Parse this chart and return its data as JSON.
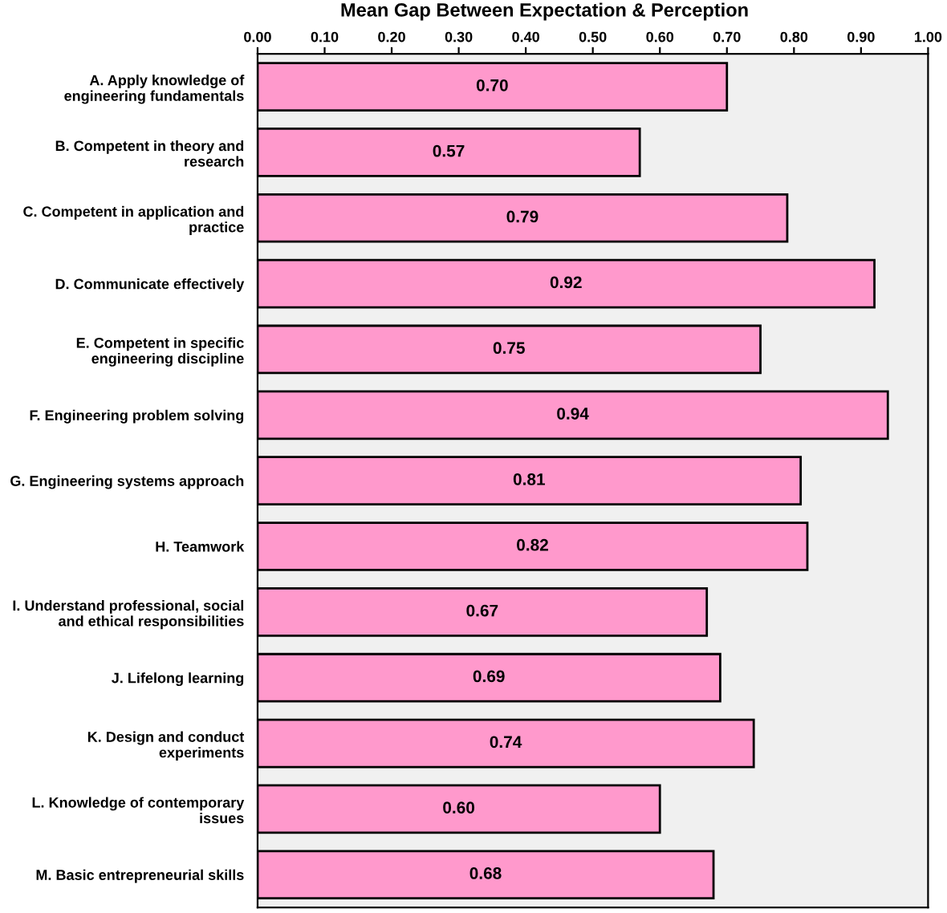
{
  "chart_data": {
    "type": "bar",
    "orientation": "horizontal",
    "title": "Mean Gap Between Expectation & Perception",
    "categories": [
      "A. Apply knowledge of\nengineering fundamentals",
      "B. Competent in theory and\nresearch",
      "C. Competent in application and\npractice",
      "D. Communicate effectively",
      "E. Competent in specific\nengineering discipline",
      "F. Engineering problem solving",
      "G. Engineering systems approach",
      "H. Teamwork",
      "I. Understand professional, social\nand ethical responsibilities",
      "J. Lifelong learning",
      "K. Design and conduct\nexperiments",
      "L. Knowledge of contemporary\nissues",
      "M. Basic entrepreneurial skills"
    ],
    "values": [
      0.7,
      0.57,
      0.79,
      0.92,
      0.75,
      0.94,
      0.81,
      0.82,
      0.67,
      0.69,
      0.74,
      0.6,
      0.68
    ],
    "value_labels": [
      "0.70",
      "0.57",
      "0.79",
      "0.92",
      "0.75",
      "0.94",
      "0.81",
      "0.82",
      "0.67",
      "0.69",
      "0.74",
      "0.60",
      "0.68"
    ],
    "color": "#ff99cc",
    "xlim": [
      0,
      1
    ],
    "xticks": [
      {
        "value": 0,
        "label": "0.00"
      },
      {
        "value": 0.1,
        "label": "0.10"
      },
      {
        "value": 0.2,
        "label": "0.20"
      },
      {
        "value": 0.3,
        "label": "0.30"
      },
      {
        "value": 0.4,
        "label": "0.40"
      },
      {
        "value": 0.5,
        "label": "0.50"
      },
      {
        "value": 0.6,
        "label": "0.60"
      },
      {
        "value": 0.7,
        "label": "0.70"
      },
      {
        "value": 0.8,
        "label": "0.80"
      },
      {
        "value": 0.9,
        "label": "0.90"
      },
      {
        "value": 1.0,
        "label": "1.00"
      }
    ],
    "grid": false,
    "legend": false
  }
}
